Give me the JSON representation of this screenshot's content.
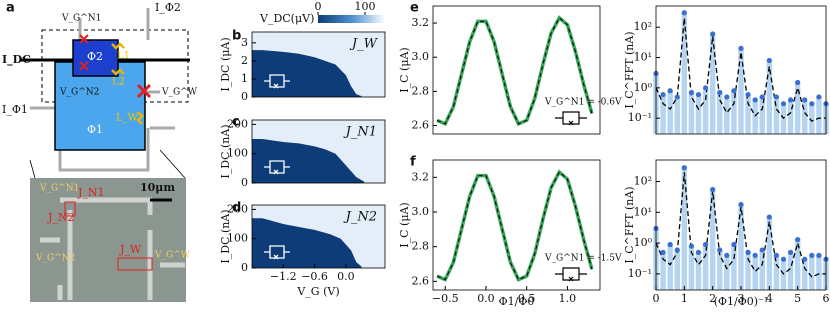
{
  "panels": [
    "a",
    "b",
    "c",
    "d",
    "e",
    "f"
  ],
  "schematic": {
    "i_dc": "I_DC",
    "phi2": "Φ2",
    "l1": "L1",
    "l2": "L2",
    "vg_n1": "V_G^N1",
    "vg_n2": "V_G^N2",
    "i_phi2": "I_Φ2",
    "i_phi1": "I_Φ1",
    "vg_w": "V_G^W",
    "l_w": "L_W",
    "phi1": "Φ1"
  },
  "micrograph": {
    "scale": "10μm",
    "j_n1": "J_N1",
    "j_n2": "J_N2",
    "j_w": "J_W",
    "vg_n1": "V_G^N1",
    "vg_n2": "V_G^N2",
    "vg_w": "V_G^W"
  },
  "chart_data": [
    {
      "type": "area",
      "ylabel": "I_DC (μA)",
      "label": "J_W",
      "color": "#0e3c78",
      "background": "#e4eef8",
      "x": [
        -1.8,
        -1.6,
        -1.2,
        -0.9,
        -0.6,
        -0.4,
        -0.2,
        -0.1,
        0.0,
        0.1,
        0.2,
        0.3
      ],
      "values": [
        2.6,
        2.6,
        2.5,
        2.4,
        2.2,
        2.0,
        1.8,
        1.5,
        1.2,
        0.6,
        0.15,
        0.05
      ],
      "xlim": [
        -1.8,
        0.75
      ],
      "ylim": [
        0,
        3.6
      ],
      "yticks": [
        0,
        1,
        2,
        3
      ],
      "colorbar": {
        "label": "V_DC(μV)",
        "ticks": [
          0,
          100
        ]
      }
    },
    {
      "type": "area",
      "ylabel": "I_DC (nA)",
      "label": "J_N1",
      "color": "#0e3c78",
      "background": "#e4eef8",
      "x": [
        -1.8,
        -1.6,
        -1.2,
        -0.9,
        -0.6,
        -0.4,
        -0.2,
        0.0,
        0.1,
        0.2,
        0.3,
        0.35
      ],
      "values": [
        150,
        150,
        140,
        135,
        125,
        115,
        100,
        60,
        40,
        20,
        10,
        5
      ],
      "xlim": [
        -1.8,
        0.75
      ],
      "ylim": [
        0,
        215
      ],
      "yticks": [
        0,
        100,
        200
      ]
    },
    {
      "type": "area",
      "ylabel": "I_DC (nA)",
      "label": "J_N2",
      "xlabel": "V_G (V)",
      "color": "#0e3c78",
      "background": "#e4eef8",
      "x": [
        -1.8,
        -1.6,
        -1.2,
        -0.9,
        -0.6,
        -0.3,
        -0.1,
        0.1,
        0.2,
        0.3
      ],
      "values": [
        170,
        170,
        150,
        140,
        130,
        115,
        100,
        60,
        20,
        5
      ],
      "xlim": [
        -1.8,
        0.75
      ],
      "ylim": [
        0,
        215
      ],
      "yticks": [
        0,
        100,
        200
      ],
      "xticks": [
        {
          "value": -1.2,
          "label": "−1.2"
        },
        {
          "value": -0.6,
          "label": "−0.6"
        },
        {
          "value": 0.0,
          "label": "0.0"
        }
      ]
    },
    {
      "type": "line",
      "ylabel": "I_C (μA)",
      "annotation": "V_G^N1 = -0.6V",
      "x": [
        -0.6,
        -0.5,
        -0.4,
        -0.3,
        -0.2,
        -0.1,
        0,
        0.1,
        0.2,
        0.3,
        0.4,
        0.5,
        0.6,
        0.7,
        0.8,
        0.9,
        1.0,
        1.1,
        1.2,
        1.3
      ],
      "series": [
        {
          "color": "#3aa55a",
          "values": [
            2.63,
            2.61,
            2.71,
            2.9,
            3.09,
            3.21,
            3.21,
            3.09,
            2.9,
            2.71,
            2.61,
            2.63,
            2.76,
            2.96,
            3.14,
            3.23,
            3.19,
            3.03,
            2.84,
            2.67
          ]
        },
        {
          "color": "#000000",
          "dash": true,
          "values": [
            2.63,
            2.61,
            2.71,
            2.9,
            3.09,
            3.21,
            3.21,
            3.09,
            2.9,
            2.71,
            2.61,
            2.63,
            2.76,
            2.96,
            3.14,
            3.23,
            3.19,
            3.03,
            2.84,
            2.67
          ]
        }
      ],
      "xlim": [
        -0.65,
        1.4
      ],
      "ylim": [
        2.55,
        3.3
      ],
      "yticks": [
        {
          "value": 2.6,
          "label": "2.6"
        },
        {
          "value": 2.8,
          "label": "2.8"
        },
        {
          "value": 3.0,
          "label": "3.0"
        },
        {
          "value": 3.2,
          "label": "3.2"
        }
      ]
    },
    {
      "type": "scatter",
      "ylabel": "I_C^FFT (nA)",
      "log_scale": true,
      "x": [
        0,
        0.25,
        0.5,
        0.75,
        1,
        1.25,
        1.5,
        1.75,
        2,
        2.25,
        2.5,
        2.75,
        3,
        3.25,
        3.5,
        3.75,
        4,
        4.25,
        4.5,
        4.75,
        5,
        5.25,
        5.5,
        5.75,
        6
      ],
      "series": [
        {
          "color": "#3a6fd0",
          "bar_color": "#b5d4f1",
          "values": [
            3,
            0.6,
            0.8,
            0.5,
            300,
            0.7,
            0.6,
            1.0,
            60,
            0.7,
            0.5,
            0.8,
            20,
            0.6,
            0.4,
            0.5,
            8,
            0.5,
            0.3,
            0.4,
            1.5,
            0.4,
            0.3,
            0.5,
            0.3
          ]
        },
        {
          "color": "#000000",
          "dash": true,
          "values": [
            1,
            0.3,
            0.2,
            0.5,
            200,
            0.5,
            0.2,
            0.4,
            50,
            0.4,
            0.15,
            0.3,
            15,
            0.3,
            0.12,
            0.2,
            5,
            0.2,
            0.1,
            0.15,
            1,
            0.15,
            0.08,
            0.1,
            0.1
          ]
        }
      ],
      "xlim": [
        0,
        6
      ],
      "ylim": [
        0.03,
        500
      ],
      "yticks": [
        {
          "value": 0.1,
          "label": "10⁻¹"
        },
        {
          "value": 1,
          "label": "10⁰"
        },
        {
          "value": 10,
          "label": "10¹"
        },
        {
          "value": 100,
          "label": "10²"
        }
      ]
    },
    {
      "type": "line",
      "ylabel": "I_C (μA)",
      "xlabel": "Φ1/Φ0",
      "annotation": "V_G^N1 = -1.5V",
      "x": [
        -0.6,
        -0.5,
        -0.4,
        -0.3,
        -0.2,
        -0.1,
        0,
        0.1,
        0.2,
        0.3,
        0.4,
        0.5,
        0.6,
        0.7,
        0.8,
        0.9,
        1.0,
        1.1,
        1.2,
        1.3
      ],
      "series": [
        {
          "color": "#3aa55a",
          "values": [
            2.63,
            2.61,
            2.71,
            2.9,
            3.09,
            3.21,
            3.21,
            3.09,
            2.9,
            2.71,
            2.61,
            2.63,
            2.76,
            2.96,
            3.14,
            3.23,
            3.19,
            3.03,
            2.84,
            2.67
          ]
        },
        {
          "color": "#000000",
          "dash": true,
          "values": [
            2.63,
            2.61,
            2.71,
            2.9,
            3.09,
            3.21,
            3.21,
            3.09,
            2.9,
            2.71,
            2.61,
            2.63,
            2.76,
            2.96,
            3.14,
            3.23,
            3.19,
            3.03,
            2.84,
            2.67
          ]
        }
      ],
      "xlim": [
        -0.65,
        1.4
      ],
      "ylim": [
        2.55,
        3.3
      ],
      "xticks": [
        {
          "value": -0.5,
          "label": "−0.5"
        },
        {
          "value": 0,
          "label": "0.0"
        },
        {
          "value": 0.5,
          "label": "0.5"
        },
        {
          "value": 1.0,
          "label": "1.0"
        }
      ],
      "yticks": [
        {
          "value": 2.6,
          "label": "2.6"
        },
        {
          "value": 2.8,
          "label": "2.8"
        },
        {
          "value": 3.0,
          "label": "3.0"
        },
        {
          "value": 3.2,
          "label": "3.2"
        }
      ]
    },
    {
      "type": "scatter",
      "ylabel": "I_C^FFT (nA)",
      "xlabel": "(Φ1/Φ0)⁻¹",
      "log_scale": true,
      "x": [
        0,
        0.25,
        0.5,
        0.75,
        1,
        1.25,
        1.5,
        1.75,
        2,
        2.25,
        2.5,
        2.75,
        3,
        3.25,
        3.5,
        3.75,
        4,
        4.25,
        4.5,
        4.75,
        5,
        5.25,
        5.5,
        5.75,
        6
      ],
      "series": [
        {
          "color": "#3a6fd0",
          "bar_color": "#b5d4f1",
          "values": [
            3,
            0.5,
            0.9,
            0.6,
            280,
            0.8,
            0.5,
            0.9,
            55,
            0.6,
            0.4,
            0.9,
            18,
            0.5,
            0.4,
            0.6,
            7,
            0.4,
            0.3,
            0.5,
            1.3,
            0.3,
            0.4,
            0.4,
            0.3
          ]
        },
        {
          "color": "#000000",
          "dash": true,
          "values": [
            1,
            0.3,
            0.2,
            0.5,
            200,
            0.5,
            0.2,
            0.4,
            50,
            0.4,
            0.15,
            0.3,
            15,
            0.3,
            0.12,
            0.2,
            5,
            0.2,
            0.1,
            0.15,
            1,
            0.15,
            0.08,
            0.1,
            0.1
          ]
        }
      ],
      "xlim": [
        0,
        6
      ],
      "ylim": [
        0.03,
        500
      ],
      "xticks": [
        0,
        1,
        2,
        3,
        4,
        5,
        6
      ],
      "yticks": [
        {
          "value": 0.1,
          "label": "10⁻¹"
        },
        {
          "value": 1,
          "label": "10⁰"
        },
        {
          "value": 10,
          "label": "10¹"
        },
        {
          "value": 100,
          "label": "10²"
        }
      ]
    }
  ]
}
